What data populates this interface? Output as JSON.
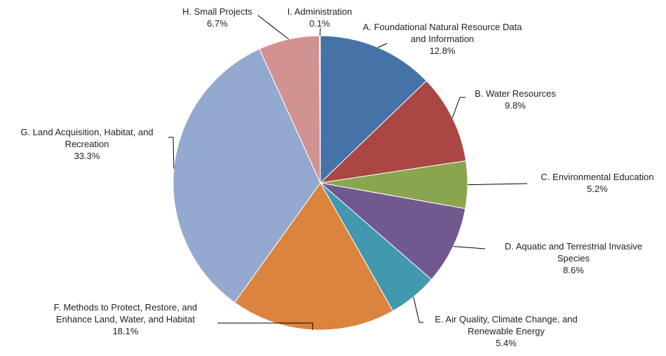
{
  "chart_data": {
    "type": "pie",
    "categories": [
      "A. Foundational Natural Resource Data and Information",
      "B. Water Resources",
      "C. Environmental Education",
      "D. Aquatic and Terrestrial Invasive Species",
      "E. Air Quality, Climate Change, and Renewable Energy",
      "F. Methods to Protect, Restore, and Enhance Land, Water, and Habitat",
      "G. Land Acquisition, Habitat, and Recreation",
      "H. Small Projects",
      "I. Administration"
    ],
    "values": [
      12.8,
      9.8,
      5.2,
      8.6,
      5.4,
      18.1,
      33.3,
      6.7,
      0.1
    ],
    "value_labels": [
      "12.8%",
      "9.8%",
      "5.2%",
      "8.6%",
      "5.4%",
      "18.1%",
      "33.3%",
      "6.7%",
      "0.1%"
    ],
    "colors": [
      "#4572a7",
      "#aa4643",
      "#89a54e",
      "#71588f",
      "#4198af",
      "#db843d",
      "#93a9cf",
      "#d19392",
      "#b9cd96"
    ]
  }
}
